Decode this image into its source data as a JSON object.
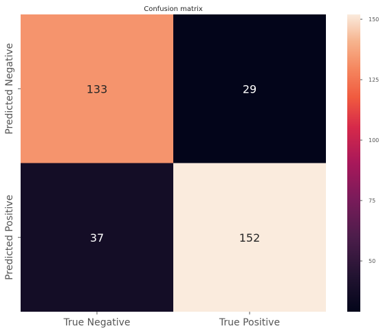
{
  "chart_data": {
    "type": "heatmap",
    "title": "Confusion matrix",
    "row_labels": [
      "Predicted Negative",
      "Predicted Positive"
    ],
    "col_labels": [
      "True Negative",
      "True Positive"
    ],
    "values": [
      [
        133,
        29
      ],
      [
        37,
        152
      ]
    ],
    "colorbar": {
      "min": 29,
      "max": 152,
      "ticks": [
        "50",
        "75",
        "100",
        "125",
        "150"
      ],
      "tick_values": [
        50,
        75,
        100,
        125,
        150
      ]
    },
    "colormap": "rocket",
    "annotations": true
  }
}
